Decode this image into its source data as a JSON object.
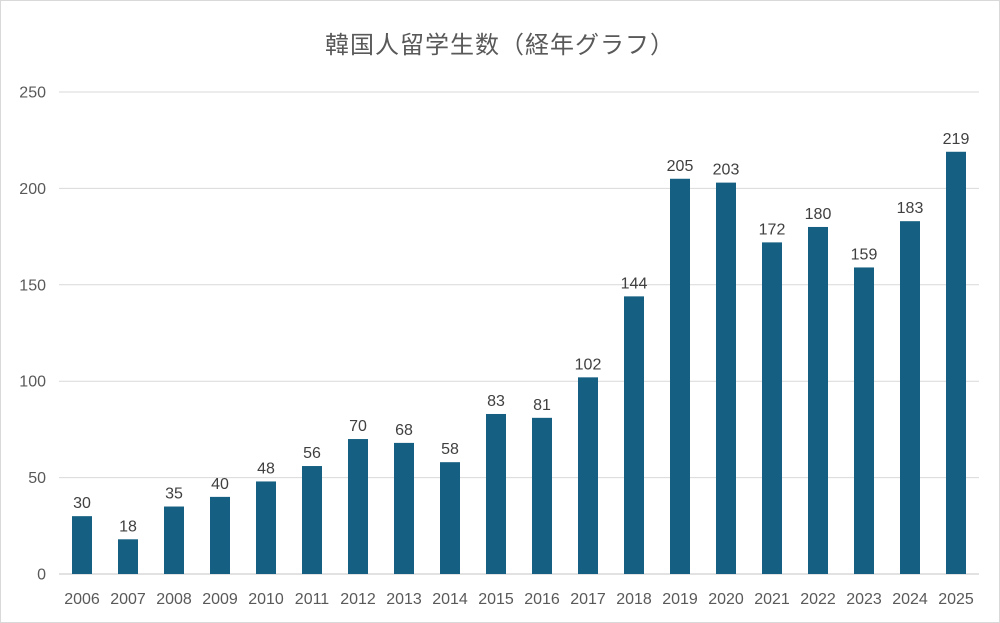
{
  "chart_data": {
    "type": "bar",
    "title": "韓国人留学生数（経年グラフ）",
    "categories": [
      "2006",
      "2007",
      "2008",
      "2009",
      "2010",
      "2011",
      "2012",
      "2013",
      "2014",
      "2015",
      "2016",
      "2017",
      "2018",
      "2019",
      "2020",
      "2021",
      "2022",
      "2023",
      "2024",
      "2025"
    ],
    "values": [
      30,
      18,
      35,
      40,
      48,
      56,
      70,
      68,
      58,
      83,
      81,
      102,
      144,
      205,
      203,
      172,
      180,
      159,
      183,
      219
    ],
    "ylim": [
      0,
      250
    ],
    "yticks": [
      0,
      50,
      100,
      150,
      200,
      250
    ],
    "xlabel": "",
    "ylabel": "",
    "grid": true,
    "legend_position": "none",
    "show_value_labels": true,
    "colors": {
      "bar": "#156082",
      "gridline": "#D9D9D9",
      "axis_line": "#D9D9D9",
      "tick_label": "#595959",
      "value_label": "#404040",
      "title": "#595959",
      "canvas_border": "#D9D9D9",
      "background": "#FFFFFF"
    }
  }
}
